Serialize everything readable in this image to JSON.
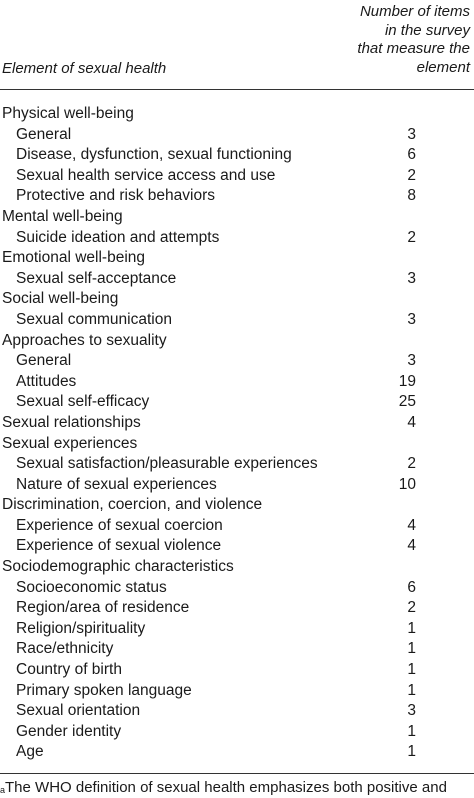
{
  "header": {
    "col1": "Element of sexual health",
    "col2_lines": [
      "Number of items",
      "in the survey",
      "that measure the",
      "element"
    ]
  },
  "rows": [
    {
      "label": "Physical well-being",
      "value": "",
      "level": 0
    },
    {
      "label": "General",
      "value": "3",
      "level": 1
    },
    {
      "label": "Disease, dysfunction, sexual functioning",
      "value": "6",
      "level": 1
    },
    {
      "label": "Sexual health service access and use",
      "value": "2",
      "level": 1
    },
    {
      "label": "Protective and risk behaviors",
      "value": "8",
      "level": 1
    },
    {
      "label": "Mental well-being",
      "value": "",
      "level": 0
    },
    {
      "label": "Suicide ideation and attempts",
      "value": "2",
      "level": 1
    },
    {
      "label": "Emotional well-being",
      "value": "",
      "level": 0
    },
    {
      "label": "Sexual self-acceptance",
      "value": "3",
      "level": 1
    },
    {
      "label": "Social well-being",
      "value": "",
      "level": 0
    },
    {
      "label": "Sexual communication",
      "value": "3",
      "level": 1
    },
    {
      "label": "Approaches to sexuality",
      "value": "",
      "level": 0
    },
    {
      "label": "General",
      "value": "3",
      "level": 1
    },
    {
      "label": "Attitudes",
      "value": "19",
      "level": 1
    },
    {
      "label": "Sexual self-efficacy",
      "value": "25",
      "level": 1
    },
    {
      "label": "Sexual relationships",
      "value": "4",
      "level": 0
    },
    {
      "label": "Sexual experiences",
      "value": "",
      "level": 0
    },
    {
      "label": "Sexual satisfaction/pleasurable experiences",
      "value": "2",
      "level": 1
    },
    {
      "label": "Nature of sexual experiences",
      "value": "10",
      "level": 1
    },
    {
      "label": "Discrimination, coercion, and violence",
      "value": "",
      "level": 0
    },
    {
      "label": "Experience of sexual coercion",
      "value": "4",
      "level": 1
    },
    {
      "label": "Experience of sexual violence",
      "value": "4",
      "level": 1
    },
    {
      "label": "Sociodemographic characteristics",
      "value": "",
      "level": 0
    },
    {
      "label": "Socioeconomic status",
      "value": "6",
      "level": 1
    },
    {
      "label": "Region/area of residence",
      "value": "2",
      "level": 1
    },
    {
      "label": "Religion/spirituality",
      "value": "1",
      "level": 1
    },
    {
      "label": "Race/ethnicity",
      "value": "1",
      "level": 1
    },
    {
      "label": "Country of birth",
      "value": "1",
      "level": 1
    },
    {
      "label": "Primary spoken language",
      "value": "1",
      "level": 1
    },
    {
      "label": "Sexual orientation",
      "value": "3",
      "level": 1
    },
    {
      "label": "Gender identity",
      "value": "1",
      "level": 1
    },
    {
      "label": "Age",
      "value": "1",
      "level": 1
    }
  ],
  "footnote": {
    "marker": "a",
    "text": "The WHO definition of sexual health emphasizes both positive and"
  }
}
